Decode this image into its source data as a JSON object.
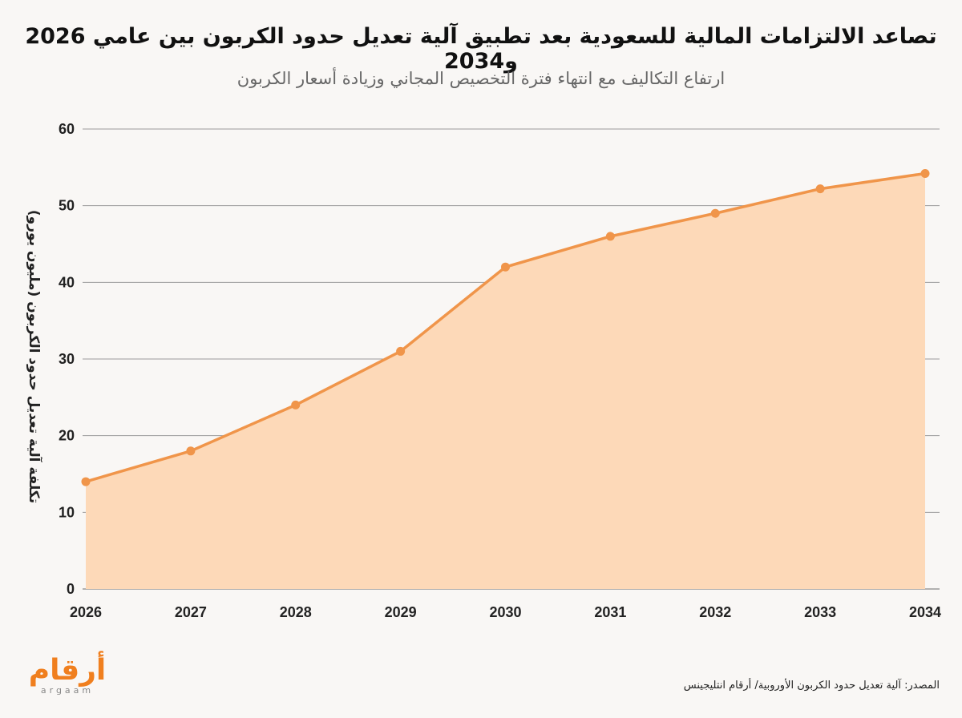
{
  "chart_data": {
    "type": "area",
    "title": "تصاعد الالتزامات المالية للسعودية بعد تطبيق آلية تعديل حدود الكربون بين عامي 2026 و2034",
    "subtitle": "ارتفاع التكاليف مع انتهاء فترة التخصيص المجاني وزيادة أسعار الكربون",
    "xlabel": "",
    "ylabel": "تكلفة آلية تعديل حدود الكربون (مليون يورو)",
    "categories": [
      "2026",
      "2027",
      "2028",
      "2029",
      "2030",
      "2031",
      "2032",
      "2033",
      "2034"
    ],
    "values": [
      14,
      18,
      24,
      31,
      42,
      46,
      49,
      52.2,
      54.2
    ],
    "ylim": [
      0,
      60
    ],
    "yticks": [
      "0",
      "10",
      "20",
      "30",
      "40",
      "50",
      "60"
    ],
    "grid": true,
    "colors": {
      "line": "#f0954a",
      "fill": "#fdd9b8",
      "grid": "#9a9a9a"
    }
  },
  "source": "المصدر: آلية تعديل حدود الكربون الأوروبية/ أرقام انتليجينس",
  "logo": {
    "arabic": "أرقام",
    "latin": "argaam"
  }
}
